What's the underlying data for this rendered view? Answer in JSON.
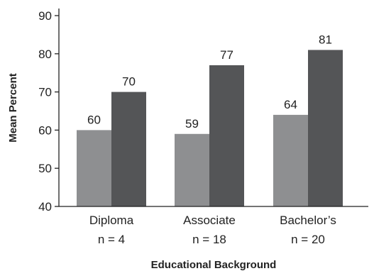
{
  "colors": {
    "light_bar": "#8e8f91",
    "dark_bar": "#545557",
    "axis": "#222222"
  },
  "chart_data": {
    "type": "bar",
    "title": "",
    "xlabel": "Educational Background",
    "ylabel": "Mean Percent",
    "ylim": [
      40,
      90
    ],
    "yticks": [
      40,
      50,
      60,
      70,
      80,
      90
    ],
    "grid": false,
    "legend": "none",
    "categories": [
      {
        "name": "Diploma",
        "n": "n = 4"
      },
      {
        "name": "Associate",
        "n": "n = 18"
      },
      {
        "name": "Bachelor’s",
        "n": "n = 20"
      }
    ],
    "series": [
      {
        "color": "#8e8f91",
        "values": [
          60,
          59,
          64
        ]
      },
      {
        "color": "#545557",
        "values": [
          70,
          77,
          81
        ]
      }
    ]
  }
}
